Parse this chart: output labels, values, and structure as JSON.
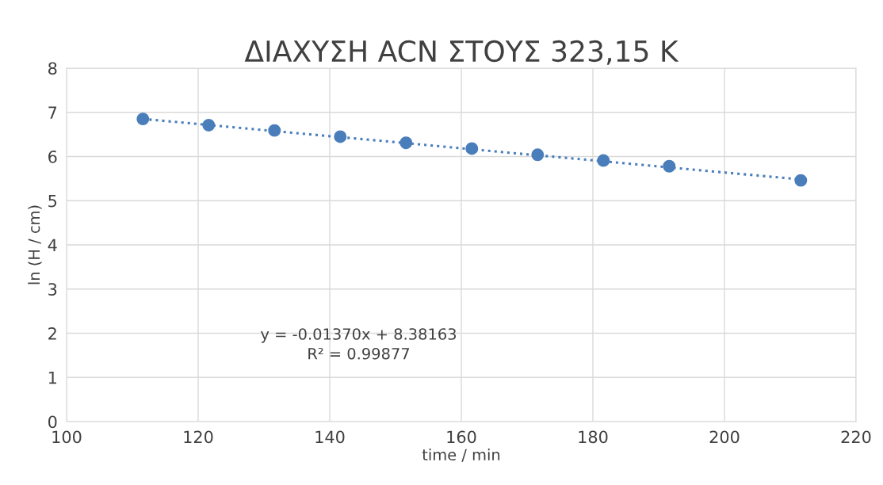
{
  "chart_data": {
    "type": "scatter",
    "title": "ΔΙΑΧΥΣΗ ACN ΣΤΟΥΣ 323,15 K",
    "xlabel": "time / min",
    "ylabel": "ln (H / cm)",
    "x": [
      111.6,
      121.6,
      131.6,
      141.6,
      151.6,
      161.6,
      171.6,
      181.6,
      191.6,
      211.6
    ],
    "series": [
      {
        "color": "#4a7ebb",
        "marker": "circle",
        "values": [
          6.85,
          6.71,
          6.59,
          6.45,
          6.31,
          6.18,
          6.04,
          5.91,
          5.78,
          5.46
        ]
      },
      {
        "type": "line",
        "color": "#4a7ebb",
        "line_style": "dotted",
        "marker": "none",
        "x": [
          111.6,
          211.6
        ],
        "values": [
          6.85,
          5.48
        ]
      }
    ],
    "annotations": [
      "y = -0.01370x + 8.38163\nR² = 0.99877"
    ],
    "xlim": [
      100,
      220
    ],
    "xticks": [
      100,
      120,
      140,
      160,
      180,
      200,
      220
    ],
    "ylim": [
      0,
      8
    ],
    "yticks": [
      0,
      1,
      2,
      3,
      4,
      5,
      6,
      7,
      8
    ],
    "grid": true
  }
}
